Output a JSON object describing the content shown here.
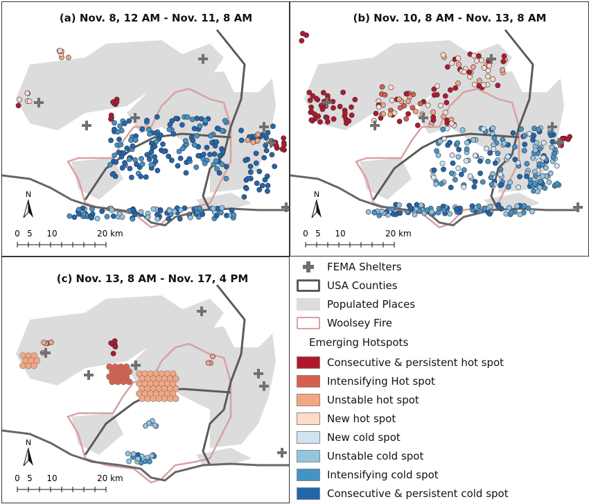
{
  "panels": [
    {
      "id": "a",
      "title": "(a) Nov. 8, 12 AM - Nov. 11, 8 AM"
    },
    {
      "id": "b",
      "title": "(b) Nov. 10, 8 AM - Nov. 13, 8 AM"
    },
    {
      "id": "c",
      "title": "(c) Nov. 13, 8 AM - Nov. 17, 4 PM"
    }
  ],
  "north_arrow": {
    "label": "N"
  },
  "scale_bar": {
    "ticks": [
      "0",
      "5",
      "10",
      "20 km"
    ]
  },
  "legend": {
    "items": [
      {
        "label": "FEMA Shelters",
        "icon": "plus-icon",
        "color": "#707070"
      },
      {
        "label": "USA Counties",
        "icon": "county-line",
        "color": "#5a5a5a"
      },
      {
        "label": "Populated Places",
        "icon": "area-fill",
        "color": "#dcdcdc"
      },
      {
        "label": "Woolsey Fire",
        "icon": "fire-outline",
        "color": "#d8a0a0"
      }
    ],
    "heading": "Emerging Hotspots",
    "categories": [
      {
        "label": "Consecutive & persistent hot spot",
        "color": "#b2182b"
      },
      {
        "label": "Intensifying Hot spot",
        "color": "#d6604d"
      },
      {
        "label": "Unstable hot spot",
        "color": "#f4a582"
      },
      {
        "label": "New hot spot",
        "color": "#fddbc7"
      },
      {
        "label": "New cold spot",
        "color": "#d1e5f0"
      },
      {
        "label": "Unstable cold spot",
        "color": "#92c5de"
      },
      {
        "label": "Intensifying cold spot",
        "color": "#4393c3"
      },
      {
        "label": "Consecutive & persistent cold spot",
        "color": "#2166ac"
      }
    ]
  }
}
